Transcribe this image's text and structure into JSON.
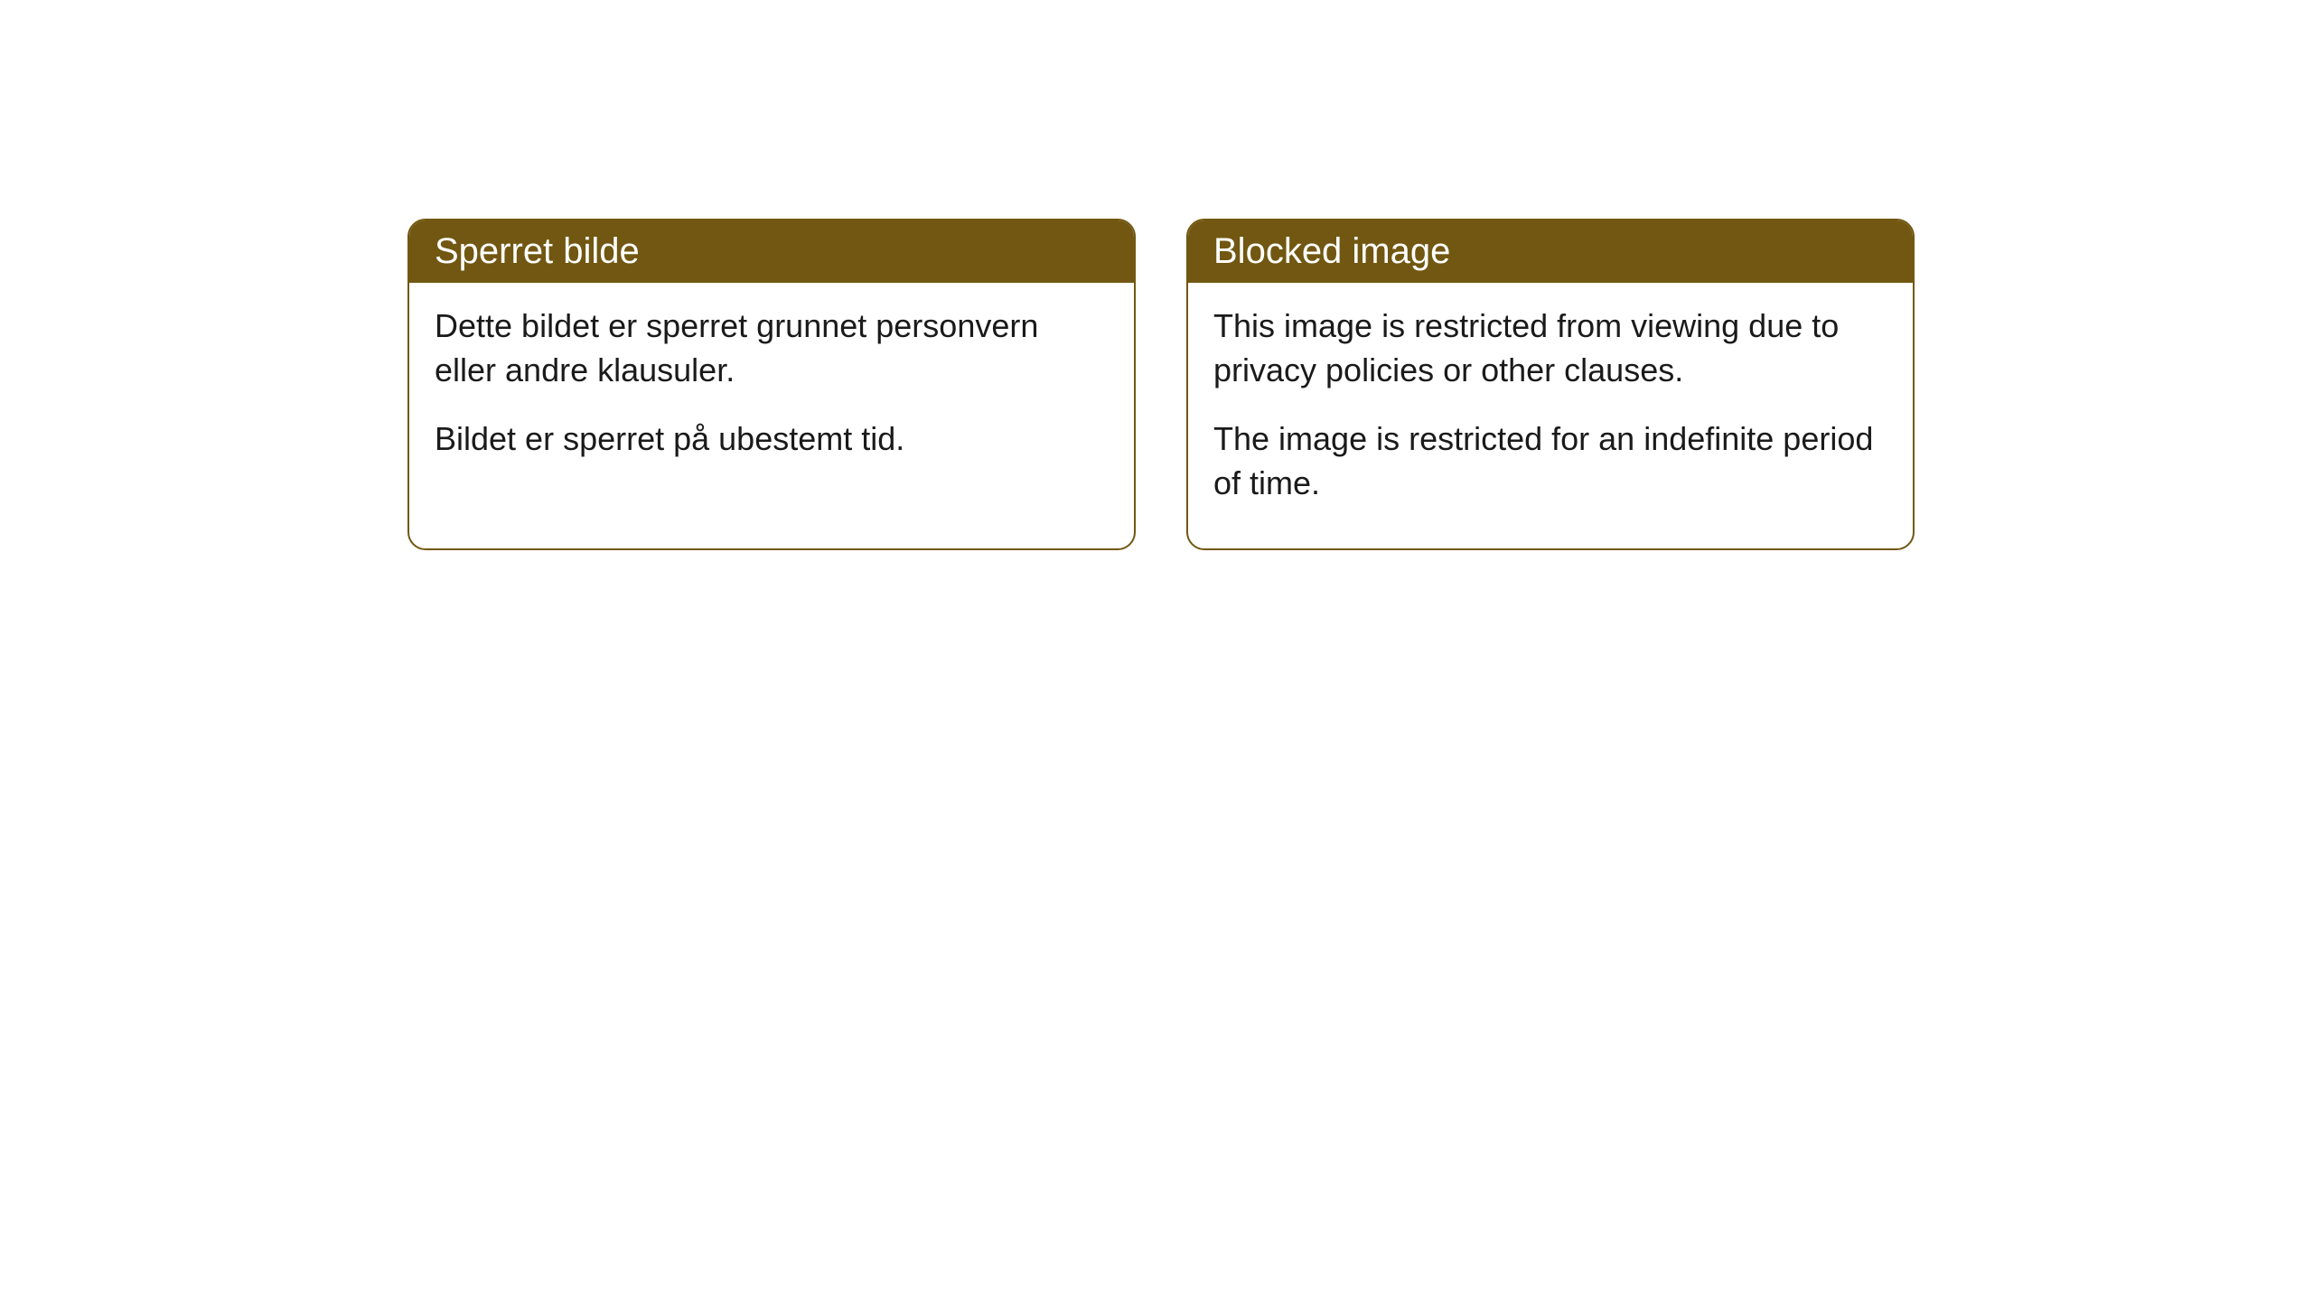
{
  "cards": [
    {
      "title": "Sperret bilde",
      "paragraph1": "Dette bildet er sperret grunnet personvern eller andre klausuler.",
      "paragraph2": "Bildet er sperret på ubestemt tid."
    },
    {
      "title": "Blocked image",
      "paragraph1": "This image is restricted from viewing due to privacy policies or other clauses.",
      "paragraph2": "The image is restricted for an indefinite period of time."
    }
  ],
  "style": {
    "header_background_color": "#715711",
    "header_text_color": "#ffffff",
    "border_color": "#715711",
    "body_text_color": "#1a1a1a",
    "background_color": "#ffffff",
    "border_radius": 20,
    "header_fontsize": 40,
    "body_fontsize": 36
  }
}
